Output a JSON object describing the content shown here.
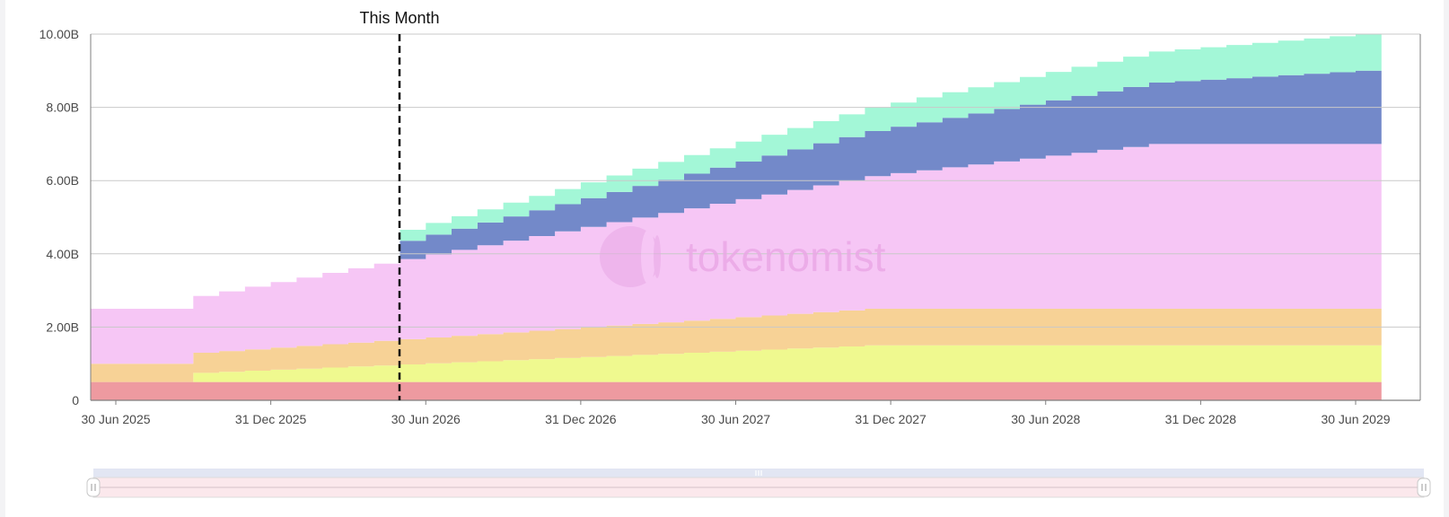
{
  "chart_data": {
    "type": "area",
    "step": true,
    "stacked": true,
    "x_start": "2025-06",
    "x_end": "2029-07",
    "x_ticks": [
      "30 Jun 2025",
      "31 Dec 2025",
      "30 Jun 2026",
      "31 Dec 2026",
      "30 Jun 2027",
      "31 Dec 2027",
      "30 Jun 2028",
      "31 Dec 2028",
      "30 Jun 2029"
    ],
    "y_ticks": [
      "0",
      "2.00B",
      "4.00B",
      "6.00B",
      "8.00B",
      "10.00B"
    ],
    "ylim": [
      0,
      10
    ],
    "y_unit": "B",
    "grid": true,
    "watermark": "tokenomist",
    "annotation": {
      "label": "This Month",
      "month": "2026-06"
    },
    "series": [
      {
        "color": "#ee9aa0",
        "schedule": {
          "type": "flat",
          "value": 0.5
        }
      },
      {
        "color": "#eff98f",
        "schedule": {
          "type": "linear",
          "start_value": 0,
          "jump_month": "2025-10",
          "jump_value": 0.25,
          "end_value": 1.0,
          "end_month": "2027-12"
        }
      },
      {
        "color": "#f7d296",
        "schedule": {
          "type": "linear",
          "start_value": 0.5,
          "jump_month": "2025-10",
          "jump_value": 0.55,
          "end_value": 1.0,
          "end_month": "2027-12"
        }
      },
      {
        "color": "#f6c6f5",
        "schedule": {
          "type": "linear",
          "start_value": 1.5,
          "jump_month": "2025-10",
          "jump_value": 1.55,
          "end_value": 4.5,
          "end_month": "2028-11"
        }
      },
      {
        "color": "#7389c9",
        "schedule": {
          "type": "linear",
          "start_value": 0,
          "jump_month": "2026-06",
          "jump_value": 0.5,
          "end_value": 2.0,
          "end_month": "2029-07"
        }
      },
      {
        "color": "#a3f7d7",
        "schedule": {
          "type": "linear",
          "start_value": 0,
          "jump_month": "2026-06",
          "jump_value": 0.3,
          "end_value": 1.0,
          "end_month": "2029-07"
        }
      }
    ]
  }
}
